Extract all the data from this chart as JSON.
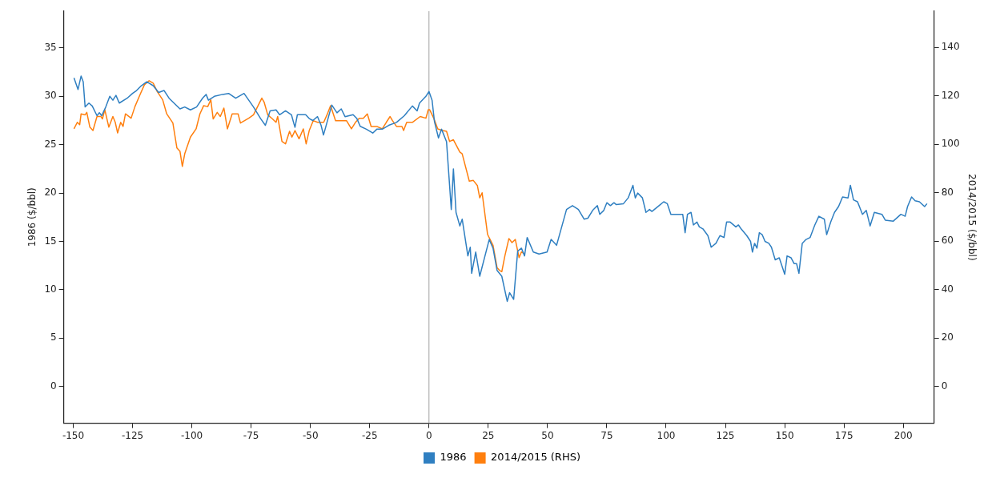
{
  "chart_data": {
    "type": "line",
    "ylabel": "1986 ($/bbl)",
    "y2label": "2014/2015 ($/bbl)",
    "xlim": [
      -154,
      213
    ],
    "xticks": [
      -150,
      -125,
      -100,
      -75,
      -50,
      -25,
      0,
      25,
      50,
      75,
      100,
      125,
      150,
      175,
      200
    ],
    "ylim": [
      -3.8,
      38.8
    ],
    "yticks": [
      0,
      5,
      10,
      15,
      20,
      25,
      30,
      35
    ],
    "y2lim": [
      -15.2,
      155
    ],
    "y2ticks": [
      0,
      20,
      40,
      60,
      80,
      100,
      120,
      140
    ],
    "legend": "bottom",
    "marker": "none",
    "line_style": "solid",
    "ref_lines": [
      {
        "axis": "x",
        "value": 0,
        "color": "#a0a0a0"
      }
    ],
    "series": [
      {
        "name": "1986",
        "color": "#2f7fc1",
        "x": [
          -149.7,
          -148,
          -146.7,
          -145.8,
          -145,
          -143.4,
          -142,
          -140,
          -139,
          -138,
          -136.3,
          -134.6,
          -133.3,
          -132,
          -130.6,
          -127.3,
          -125,
          -123.3,
          -121.3,
          -119,
          -116.3,
          -114,
          -111.7,
          -109.6,
          -105,
          -103,
          -100.6,
          -98,
          -95.5,
          -94,
          -93,
          -90.5,
          -87,
          -84.5,
          -81.5,
          -78,
          -76,
          -74,
          -71,
          -69,
          -67,
          -64.5,
          -63,
          -60.5,
          -58,
          -57,
          -56.5,
          -55.5,
          -52,
          -50.5,
          -49,
          -47,
          -45.5,
          -44.5,
          -43.8,
          -41,
          -38.8,
          -37,
          -35.4,
          -32,
          -30.4,
          -29,
          -26.4,
          -23.7,
          -22,
          -19.7,
          -17,
          -13.7,
          -10.4,
          -7,
          -5,
          -4,
          -1.3,
          0,
          1.3,
          2.3,
          4,
          5.3,
          7.4,
          9.4,
          10.3,
          11.4,
          13,
          14,
          16.4,
          17.4,
          18,
          19.7,
          21.4,
          25.4,
          27,
          28.7,
          30.7,
          33,
          34,
          35.7,
          37.4,
          39,
          40.3,
          41.4,
          44,
          46.4,
          49.8,
          51.5,
          53.8,
          58,
          60.5,
          63,
          65.4,
          67,
          69,
          71,
          72,
          73.7,
          75,
          76.5,
          78,
          79,
          82,
          84,
          86,
          87,
          88,
          90,
          91.5,
          93,
          94,
          97,
          99,
          100.5,
          102,
          107,
          108,
          109,
          110.5,
          111.5,
          113,
          114,
          115.5,
          117.6,
          119,
          121,
          122.7,
          124.4,
          125.5,
          127,
          129.4,
          130.5,
          131.6,
          134,
          135.6,
          136.4,
          137.3,
          138.3,
          139.3,
          140.5,
          141.7,
          143.3,
          144.4,
          146,
          147.7,
          150,
          151,
          152.7,
          154,
          155,
          156,
          157.4,
          159,
          160.7,
          162.7,
          164.4,
          166.7,
          167.7,
          169.4,
          171,
          172.7,
          174.4,
          176.7,
          177.7,
          179,
          180.7,
          182.8,
          184.4,
          186,
          187.8,
          191,
          192.4,
          195.8,
          199,
          200.8,
          201.8,
          203.5,
          205,
          206.8,
          209,
          210
        ],
        "values": [
          31.9,
          30.7,
          32.1,
          31.5,
          28.9,
          29.3,
          29.0,
          28.0,
          28.3,
          28.0,
          28.9,
          30.0,
          29.6,
          30.1,
          29.3,
          29.8,
          30.3,
          30.6,
          31.1,
          31.5,
          31.1,
          30.4,
          30.6,
          29.8,
          28.7,
          28.9,
          28.6,
          28.9,
          29.8,
          30.2,
          29.6,
          30.0,
          30.2,
          30.3,
          29.8,
          30.3,
          29.6,
          28.9,
          27.7,
          27.0,
          28.5,
          28.6,
          28.1,
          28.5,
          28.1,
          27.2,
          26.8,
          28.1,
          28.1,
          27.7,
          27.5,
          27.9,
          27.0,
          26.0,
          26.6,
          29.1,
          28.3,
          28.7,
          27.9,
          28.1,
          27.7,
          26.9,
          26.6,
          26.2,
          26.6,
          26.6,
          27.0,
          27.3,
          28.0,
          29.0,
          28.5,
          29.3,
          30.0,
          30.5,
          29.6,
          27.4,
          25.7,
          26.6,
          25.3,
          18.3,
          22.5,
          18.0,
          16.6,
          17.3,
          13.5,
          14.4,
          11.7,
          13.9,
          11.4,
          15.2,
          14.3,
          12.0,
          11.4,
          8.8,
          9.7,
          9.0,
          14.0,
          14.3,
          13.5,
          15.4,
          13.9,
          13.7,
          13.9,
          15.2,
          14.6,
          18.3,
          18.7,
          18.3,
          17.3,
          17.4,
          18.2,
          18.7,
          17.8,
          18.2,
          19.0,
          18.7,
          19.0,
          18.8,
          18.9,
          19.5,
          20.8,
          19.5,
          20.0,
          19.5,
          18.0,
          18.3,
          18.1,
          18.7,
          19.1,
          18.9,
          17.8,
          17.8,
          15.9,
          17.8,
          18.0,
          16.7,
          17.0,
          16.5,
          16.3,
          15.6,
          14.4,
          14.8,
          15.6,
          15.4,
          17.0,
          17.0,
          16.5,
          16.7,
          16.3,
          15.6,
          15.0,
          13.9,
          14.8,
          14.3,
          15.9,
          15.7,
          15.0,
          14.8,
          14.4,
          13.1,
          13.3,
          11.6,
          13.5,
          13.3,
          12.7,
          12.7,
          11.7,
          14.8,
          15.2,
          15.4,
          16.7,
          17.6,
          17.3,
          15.7,
          17.0,
          18.0,
          18.6,
          19.6,
          19.5,
          20.8,
          19.3,
          19.1,
          17.8,
          18.2,
          16.6,
          18.0,
          17.8,
          17.2,
          17.1,
          17.8,
          17.6,
          18.6,
          19.6,
          19.2,
          19.1,
          18.6,
          18.9
        ]
      },
      {
        "name": "2014/2015 (RHS)",
        "color": "#ff7f0e",
        "axis": "y2",
        "x": [
          -149.7,
          -148.3,
          -147.3,
          -146.7,
          -145,
          -144.3,
          -143,
          -141.7,
          -140,
          -138.3,
          -137.7,
          -136.7,
          -135,
          -133.3,
          -132.3,
          -131.3,
          -130,
          -129,
          -128,
          -125.6,
          -124,
          -121.6,
          -120,
          -118,
          -116.3,
          -114.6,
          -112.3,
          -110.6,
          -108,
          -106.3,
          -105,
          -104,
          -103,
          -100.6,
          -98.2,
          -96.6,
          -95,
          -93.3,
          -92,
          -91,
          -89.3,
          -88,
          -86.5,
          -85,
          -83,
          -80.5,
          -79.5,
          -76,
          -74,
          -70.5,
          -69.5,
          -68,
          -66,
          -64.5,
          -63.8,
          -62,
          -60.5,
          -58.8,
          -57.8,
          -56.5,
          -54.8,
          -53,
          -51.8,
          -50.5,
          -48.8,
          -47,
          -44.4,
          -43,
          -41.5,
          -39.4,
          -37,
          -34.8,
          -32.7,
          -31,
          -29.4,
          -27.7,
          -26,
          -24.4,
          -22,
          -19.7,
          -18,
          -16.4,
          -15.4,
          -13.7,
          -11.4,
          -10.7,
          -9.4,
          -7,
          -3.7,
          -1.3,
          -0.3,
          0.3,
          2,
          3.7,
          5.7,
          7.4,
          8.7,
          10.3,
          13,
          14,
          17,
          18.7,
          20.4,
          21.4,
          22.4,
          24.7,
          27,
          28.7,
          29.7,
          30.7,
          32,
          33.7,
          35,
          36.4,
          38,
          39,
          40
        ],
        "values": [
          106.4,
          109.1,
          108.1,
          112.6,
          112.2,
          113.2,
          107.1,
          105.7,
          111.5,
          111.5,
          110.5,
          114.3,
          107.1,
          111.5,
          109.1,
          104.7,
          109.1,
          107.4,
          112.6,
          110.8,
          115.6,
          121.1,
          124.6,
          126.3,
          125.3,
          121.8,
          118.4,
          112.6,
          108.8,
          98.5,
          97.1,
          90.9,
          96.1,
          103.0,
          106.4,
          112.6,
          116.0,
          115.6,
          118.4,
          110.5,
          113.2,
          111.5,
          115.0,
          106.4,
          112.6,
          112.6,
          108.8,
          110.8,
          112.2,
          119.1,
          117.4,
          112.2,
          110.5,
          109.1,
          111.5,
          101.2,
          100.2,
          105.4,
          103.0,
          105.7,
          102.3,
          106.4,
          100.2,
          105.7,
          109.8,
          109.1,
          109.1,
          112.2,
          116.0,
          109.8,
          109.8,
          109.8,
          106.4,
          109.1,
          110.8,
          110.8,
          112.6,
          107.4,
          107.4,
          106.4,
          109.1,
          111.5,
          109.8,
          107.4,
          107.4,
          105.7,
          109.1,
          109.1,
          111.5,
          110.8,
          114.3,
          114.3,
          110.8,
          106.4,
          105.7,
          105.4,
          101.2,
          101.9,
          96.8,
          96.1,
          84.8,
          85.1,
          83.0,
          77.9,
          80.0,
          62.8,
          58.3,
          49.1,
          48.0,
          47.4,
          53.9,
          61.1,
          59.4,
          60.7,
          53.2,
          55.6,
          54.9
        ]
      }
    ]
  }
}
